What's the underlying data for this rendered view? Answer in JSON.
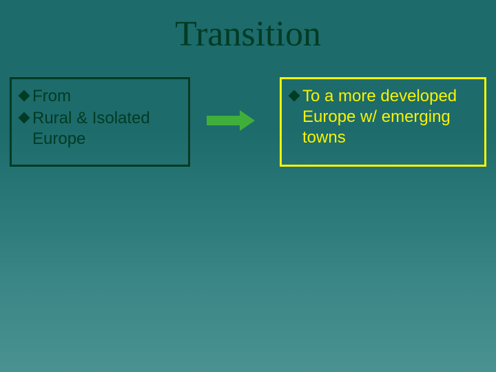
{
  "title": "Transition",
  "left_box": {
    "border_color": "#013b24",
    "text_color": "#013b24",
    "bullets": [
      {
        "text": "From"
      },
      {
        "text": "Rural & Isolated Europe"
      }
    ]
  },
  "right_box": {
    "border_color": "#f7f300",
    "text_color": "#f7f300",
    "bullets": [
      {
        "text": "To a more developed Europe w/ emerging towns"
      }
    ]
  },
  "arrow": {
    "color": "#40af3a"
  },
  "background": {
    "gradient_top": "#1d6b6b",
    "gradient_bottom": "#4a9292"
  },
  "bullet_marker": {
    "shape": "diamond",
    "color": "#013b24"
  },
  "fonts": {
    "title_family": "Times New Roman",
    "title_size_pt": 40,
    "body_family": "Verdana",
    "body_size_pt": 18
  }
}
